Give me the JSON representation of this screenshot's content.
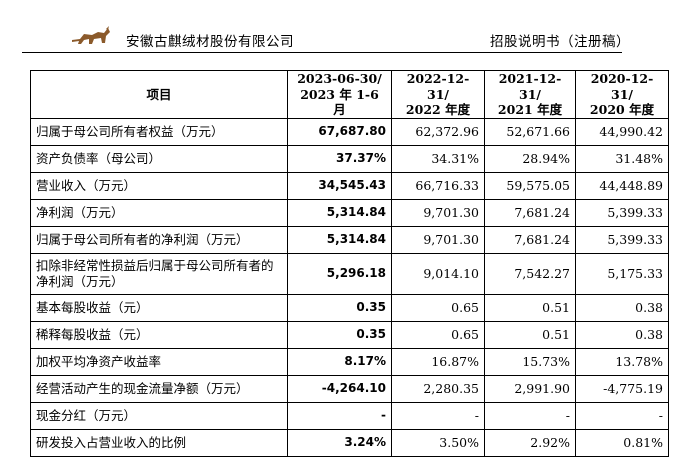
{
  "header": {
    "company": "安徽古麒绒材股份有限公司",
    "document_title": "招股说明书（注册稿）"
  },
  "table": {
    "columns": [
      {
        "line1": "项目",
        "line2": ""
      },
      {
        "line1": "2023-06-30/",
        "line2": "2023 年 1-6 月"
      },
      {
        "line1": "2022-12-31/",
        "line2": "2022 年度"
      },
      {
        "line1": "2021-12-31/",
        "line2": "2021 年度"
      },
      {
        "line1": "2020-12-31/",
        "line2": "2020 年度"
      }
    ],
    "rows": [
      {
        "label": "归属于母公司所有者权益（万元）",
        "values": [
          "67,687.80",
          "62,372.96",
          "52,671.66",
          "44,990.42"
        ]
      },
      {
        "label": "资产负债率（母公司）",
        "values": [
          "37.37%",
          "34.31%",
          "28.94%",
          "31.48%"
        ]
      },
      {
        "label": "营业收入（万元）",
        "values": [
          "34,545.43",
          "66,716.33",
          "59,575.05",
          "44,448.89"
        ]
      },
      {
        "label": "净利润（万元）",
        "values": [
          "5,314.84",
          "9,701.30",
          "7,681.24",
          "5,399.33"
        ]
      },
      {
        "label": "归属于母公司所有者的净利润（万元）",
        "values": [
          "5,314.84",
          "9,701.30",
          "7,681.24",
          "5,399.33"
        ]
      },
      {
        "label": "扣除非经常性损益后归属于母公司所有者的净利润（万元）",
        "values": [
          "5,296.18",
          "9,014.10",
          "7,542.27",
          "5,175.33"
        ]
      },
      {
        "label": "基本每股收益（元）",
        "values": [
          "0.35",
          "0.65",
          "0.51",
          "0.38"
        ]
      },
      {
        "label": "稀释每股收益（元）",
        "values": [
          "0.35",
          "0.65",
          "0.51",
          "0.38"
        ]
      },
      {
        "label": "加权平均净资产收益率",
        "values": [
          "8.17%",
          "16.87%",
          "15.73%",
          "13.78%"
        ]
      },
      {
        "label": "经营活动产生的现金流量净额（万元）",
        "values": [
          "-4,264.10",
          "2,280.35",
          "2,991.90",
          "-4,775.19"
        ]
      },
      {
        "label": "现金分红（万元）",
        "values": [
          "-",
          "-",
          "-",
          "-"
        ]
      },
      {
        "label": "研发投入占营业收入的比例",
        "values": [
          "3.24%",
          "3.50%",
          "2.92%",
          "0.81%"
        ]
      }
    ]
  }
}
